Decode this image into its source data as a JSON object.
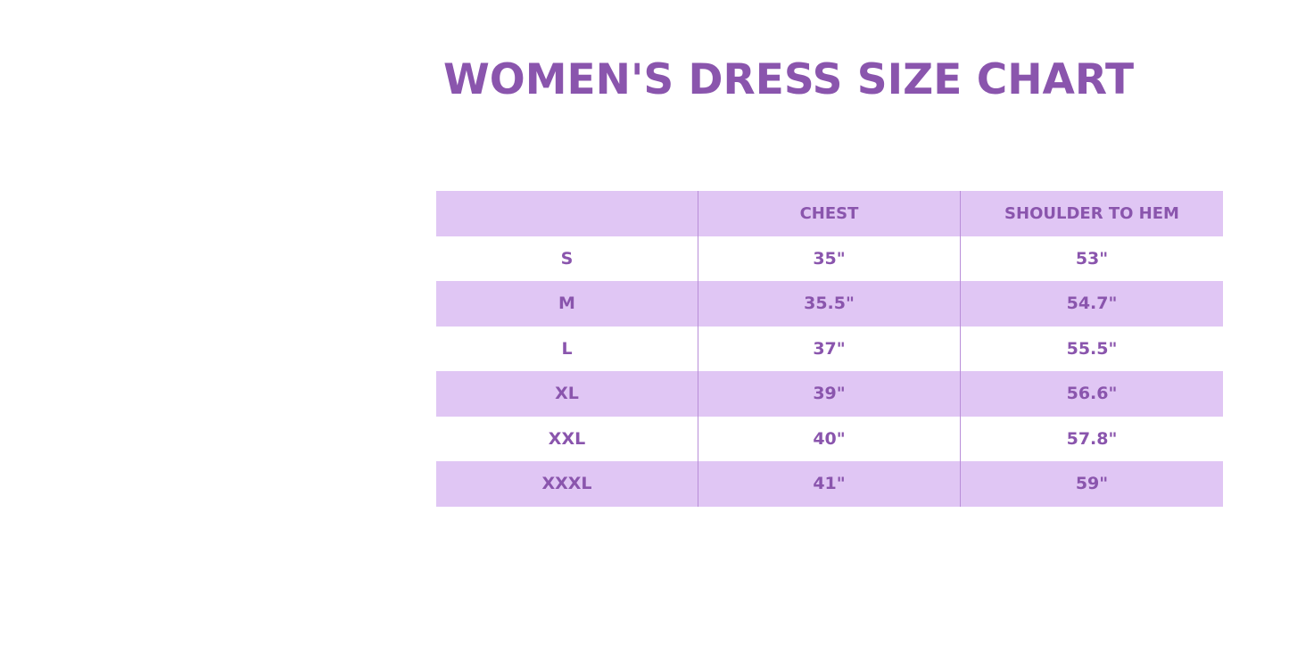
{
  "title": "WOMEN'S DRESS SIZE CHART",
  "table": {
    "headers": [
      "",
      "CHEST",
      "SHOULDER TO HEM"
    ],
    "rows": [
      [
        "S",
        "35\"",
        "53\""
      ],
      [
        "M",
        "35.5\"",
        "54.7\""
      ],
      [
        "L",
        "37\"",
        "55.5\""
      ],
      [
        "XL",
        "39\"",
        "56.6\""
      ],
      [
        "XXL",
        "40\"",
        "57.8\""
      ],
      [
        "XXXL",
        "41\"",
        "59\""
      ]
    ]
  },
  "colors": {
    "text": "#8a55ad",
    "row_shade": "#e0c6f4"
  }
}
